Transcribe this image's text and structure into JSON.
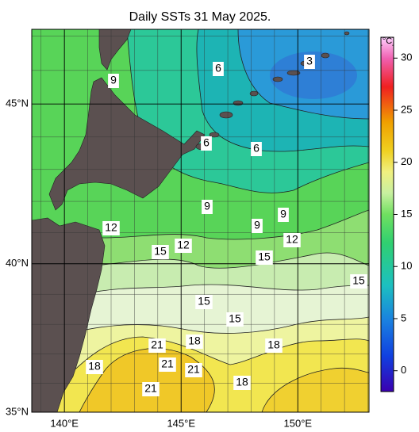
{
  "title": "Daily SSTs 31 May 2025.",
  "map": {
    "projection": "mercator",
    "lonlim": [
      138.6,
      153.05
    ],
    "latlim": [
      35,
      47.2
    ],
    "grid": true,
    "lon_ticks": [
      {
        "value": 140,
        "label": "140°E"
      },
      {
        "value": 145,
        "label": "145°E"
      },
      {
        "value": 150,
        "label": "150°E"
      }
    ],
    "lat_ticks": [
      {
        "value": 35,
        "label": "35°N"
      },
      {
        "value": 40,
        "label": "40°N"
      },
      {
        "value": 45,
        "label": "45°N"
      }
    ]
  },
  "colorbar": {
    "label": "[°C]",
    "lim": [
      -2,
      32
    ],
    "ticks": [
      0,
      5,
      10,
      15,
      20,
      25,
      30
    ]
  },
  "contour_labels": [
    3,
    6,
    9,
    6,
    6,
    9,
    9,
    9,
    12,
    12,
    12,
    15,
    15,
    15,
    15,
    15,
    18,
    18,
    21,
    21,
    21,
    18,
    18,
    21
  ]
}
